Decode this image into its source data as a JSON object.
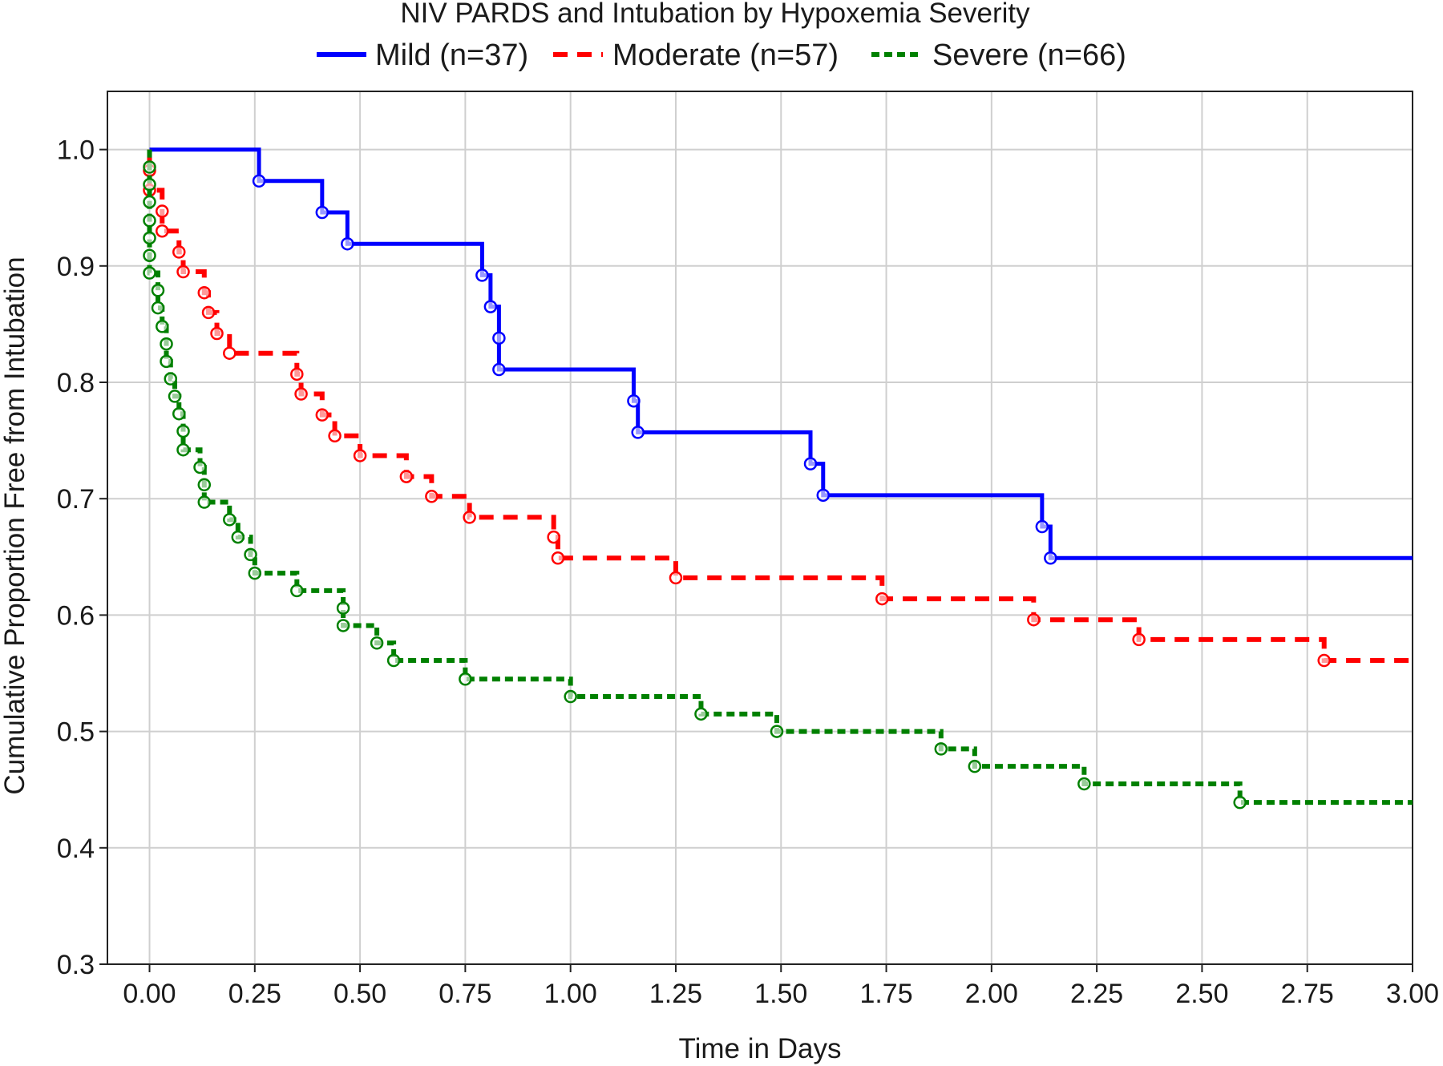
{
  "chart_data": {
    "type": "line",
    "subtype": "kaplan-meier step",
    "title": "NIV PARDS and Intubation by Hypoxemia Severity",
    "xlabel": "Time in Days",
    "ylabel": "Cumulative Proportion Free from Intubation",
    "xlim": [
      -0.1,
      3.0
    ],
    "ylim": [
      0.3,
      1.05
    ],
    "x_ticks": [
      "0.00",
      "0.25",
      "0.50",
      "0.75",
      "1.00",
      "1.25",
      "1.50",
      "1.75",
      "2.00",
      "2.25",
      "2.50",
      "2.75",
      "3.00"
    ],
    "x_tick_values": [
      0,
      0.25,
      0.5,
      0.75,
      1.0,
      1.25,
      1.5,
      1.75,
      2.0,
      2.25,
      2.5,
      2.75,
      3.0
    ],
    "y_ticks": [
      "0.3",
      "0.4",
      "0.5",
      "0.6",
      "0.7",
      "0.8",
      "0.9",
      "1.0"
    ],
    "y_tick_values": [
      0.3,
      0.4,
      0.5,
      0.6,
      0.7,
      0.8,
      0.9,
      1.0
    ],
    "grid": true,
    "legend_position": "top",
    "series": [
      {
        "name": "Mild (n=37)",
        "color": "#0000ff",
        "line_style": "solid",
        "x": [
          0,
          0.26,
          0.41,
          0.47,
          0.79,
          0.81,
          0.83,
          0.83,
          1.15,
          1.16,
          1.57,
          1.6,
          2.12,
          2.14,
          3.0
        ],
        "y": [
          1.0,
          0.973,
          0.946,
          0.919,
          0.892,
          0.865,
          0.838,
          0.811,
          0.784,
          0.757,
          0.73,
          0.703,
          0.676,
          0.649,
          0.649
        ],
        "markers_x": [
          0.26,
          0.41,
          0.47,
          0.79,
          0.81,
          0.83,
          0.83,
          1.15,
          1.16,
          1.57,
          1.6,
          2.12,
          2.14
        ],
        "markers_y": [
          0.973,
          0.946,
          0.919,
          0.892,
          0.865,
          0.838,
          0.811,
          0.784,
          0.757,
          0.73,
          0.703,
          0.676,
          0.649
        ]
      },
      {
        "name": "Moderate (n=57)",
        "color": "#ff0000",
        "line_style": "dashed",
        "x": [
          0,
          0.0,
          0.0,
          0.03,
          0.03,
          0.07,
          0.08,
          0.13,
          0.14,
          0.16,
          0.19,
          0.35,
          0.36,
          0.41,
          0.44,
          0.5,
          0.61,
          0.67,
          0.76,
          0.96,
          0.97,
          1.25,
          1.74,
          2.1,
          2.35,
          2.79,
          3.0
        ],
        "y": [
          1.0,
          0.982,
          0.965,
          0.947,
          0.93,
          0.912,
          0.895,
          0.877,
          0.86,
          0.842,
          0.825,
          0.807,
          0.79,
          0.772,
          0.754,
          0.737,
          0.719,
          0.702,
          0.684,
          0.667,
          0.649,
          0.632,
          0.614,
          0.596,
          0.579,
          0.561,
          0.561
        ],
        "markers_x": [
          0.0,
          0.0,
          0.03,
          0.03,
          0.07,
          0.08,
          0.13,
          0.14,
          0.16,
          0.19,
          0.35,
          0.36,
          0.41,
          0.44,
          0.5,
          0.61,
          0.67,
          0.76,
          0.96,
          0.97,
          1.25,
          1.74,
          2.1,
          2.35,
          2.79
        ],
        "markers_y": [
          0.982,
          0.965,
          0.947,
          0.93,
          0.912,
          0.895,
          0.877,
          0.86,
          0.842,
          0.825,
          0.807,
          0.79,
          0.772,
          0.754,
          0.737,
          0.719,
          0.702,
          0.684,
          0.667,
          0.649,
          0.632,
          0.614,
          0.596,
          0.579,
          0.561
        ]
      },
      {
        "name": "Severe (n=66)",
        "color": "#008000",
        "line_style": "dashed",
        "x": [
          0,
          0.0,
          0.0,
          0.0,
          0.0,
          0.0,
          0.0,
          0.0,
          0.02,
          0.02,
          0.03,
          0.04,
          0.04,
          0.05,
          0.06,
          0.07,
          0.08,
          0.08,
          0.12,
          0.13,
          0.13,
          0.19,
          0.21,
          0.24,
          0.25,
          0.35,
          0.46,
          0.46,
          0.54,
          0.58,
          0.75,
          1.0,
          1.31,
          1.49,
          1.88,
          1.96,
          2.22,
          2.59,
          3.0
        ],
        "y": [
          1.0,
          0.985,
          0.97,
          0.955,
          0.939,
          0.924,
          0.909,
          0.894,
          0.879,
          0.864,
          0.848,
          0.833,
          0.818,
          0.803,
          0.788,
          0.773,
          0.758,
          0.742,
          0.727,
          0.712,
          0.697,
          0.682,
          0.667,
          0.652,
          0.636,
          0.621,
          0.606,
          0.591,
          0.576,
          0.561,
          0.545,
          0.53,
          0.515,
          0.5,
          0.485,
          0.47,
          0.455,
          0.439,
          0.439
        ],
        "markers_x": [
          0.0,
          0.0,
          0.0,
          0.0,
          0.0,
          0.0,
          0.0,
          0.02,
          0.02,
          0.03,
          0.04,
          0.04,
          0.05,
          0.06,
          0.07,
          0.08,
          0.08,
          0.12,
          0.13,
          0.13,
          0.19,
          0.21,
          0.24,
          0.25,
          0.35,
          0.46,
          0.46,
          0.54,
          0.58,
          0.75,
          1.0,
          1.31,
          1.49,
          1.88,
          1.96,
          2.22,
          2.59
        ],
        "markers_y": [
          0.985,
          0.97,
          0.955,
          0.939,
          0.924,
          0.909,
          0.894,
          0.879,
          0.864,
          0.848,
          0.833,
          0.818,
          0.803,
          0.788,
          0.773,
          0.758,
          0.742,
          0.727,
          0.712,
          0.697,
          0.682,
          0.667,
          0.652,
          0.636,
          0.621,
          0.606,
          0.591,
          0.576,
          0.561,
          0.545,
          0.53,
          0.515,
          0.5,
          0.485,
          0.47,
          0.455,
          0.439
        ]
      }
    ]
  }
}
